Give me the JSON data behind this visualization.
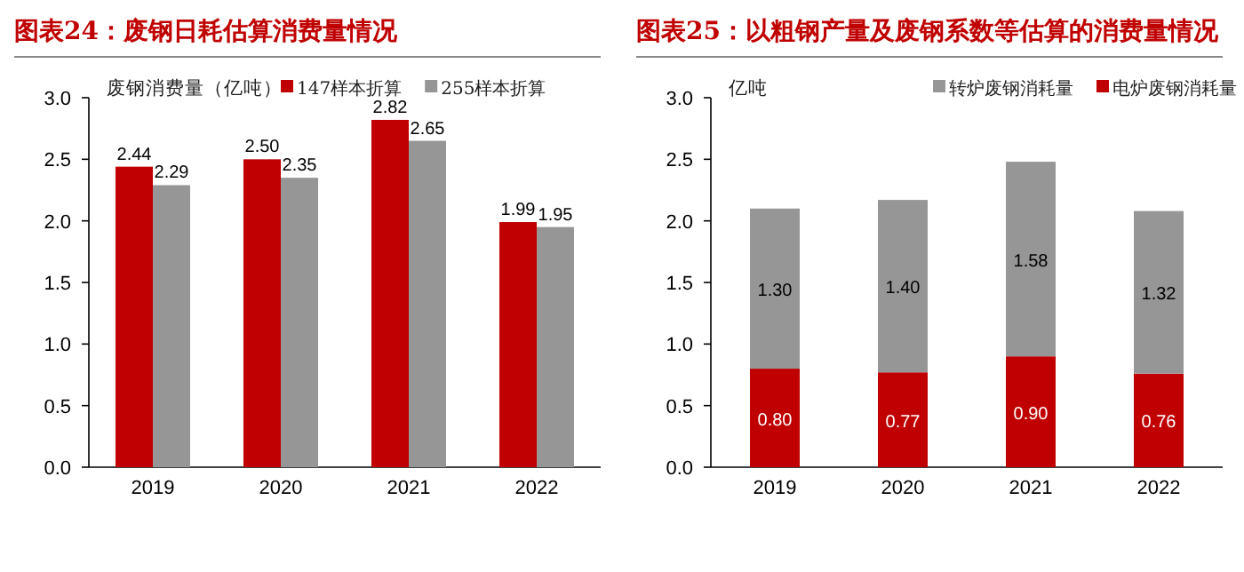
{
  "chart_data": [
    {
      "type": "bar",
      "title": "图表24：废钢日耗估算消费量情况",
      "ylabel": "废钢消费量（亿吨）",
      "categories": [
        "2019",
        "2020",
        "2021",
        "2022"
      ],
      "series": [
        {
          "name": "147样本折算",
          "color": "#c00000",
          "values": [
            2.44,
            2.5,
            2.82,
            1.99
          ],
          "value_labels": [
            "2.44",
            "2.50",
            "2.82",
            "1.99"
          ]
        },
        {
          "name": "255样本折算",
          "color": "#969696",
          "values": [
            2.29,
            2.35,
            2.65,
            1.95
          ],
          "value_labels": [
            "2.29",
            "2.35",
            "2.65",
            "1.95"
          ]
        }
      ],
      "ylim": [
        0,
        3
      ],
      "yticks": [
        {
          "value": 0,
          "label": "0.0"
        },
        {
          "value": 0.5,
          "label": "0.5"
        },
        {
          "value": 1,
          "label": "1.0"
        },
        {
          "value": 1.5,
          "label": "1.5"
        },
        {
          "value": 2,
          "label": "2.0"
        },
        {
          "value": 2.5,
          "label": "2.5"
        },
        {
          "value": 3,
          "label": "3.0"
        }
      ],
      "legend": "top"
    },
    {
      "type": "bar",
      "stacked": true,
      "title": "图表25：以粗钢产量及废钢系数等估算的消费量情况",
      "ylabel": "亿吨",
      "categories": [
        "2019",
        "2020",
        "2021",
        "2022"
      ],
      "series": [
        {
          "name": "电炉废钢消耗量",
          "color": "#c00000",
          "values": [
            0.8,
            0.77,
            0.9,
            0.76
          ],
          "value_labels": [
            "0.80",
            "0.77",
            "0.90",
            "0.76"
          ]
        },
        {
          "name": "转炉废钢消耗量",
          "color": "#969696",
          "values": [
            1.3,
            1.4,
            1.58,
            1.32
          ],
          "value_labels": [
            "1.30",
            "1.40",
            "1.58",
            "1.32"
          ]
        }
      ],
      "ylim": [
        0,
        3
      ],
      "yticks": [
        {
          "value": 0,
          "label": "0.0"
        },
        {
          "value": 0.5,
          "label": "0.5"
        },
        {
          "value": 1,
          "label": "1.0"
        },
        {
          "value": 1.5,
          "label": "1.5"
        },
        {
          "value": 2,
          "label": "2.0"
        },
        {
          "value": 2.5,
          "label": "2.5"
        },
        {
          "value": 3,
          "label": "3.0"
        }
      ],
      "legend": "top"
    }
  ]
}
